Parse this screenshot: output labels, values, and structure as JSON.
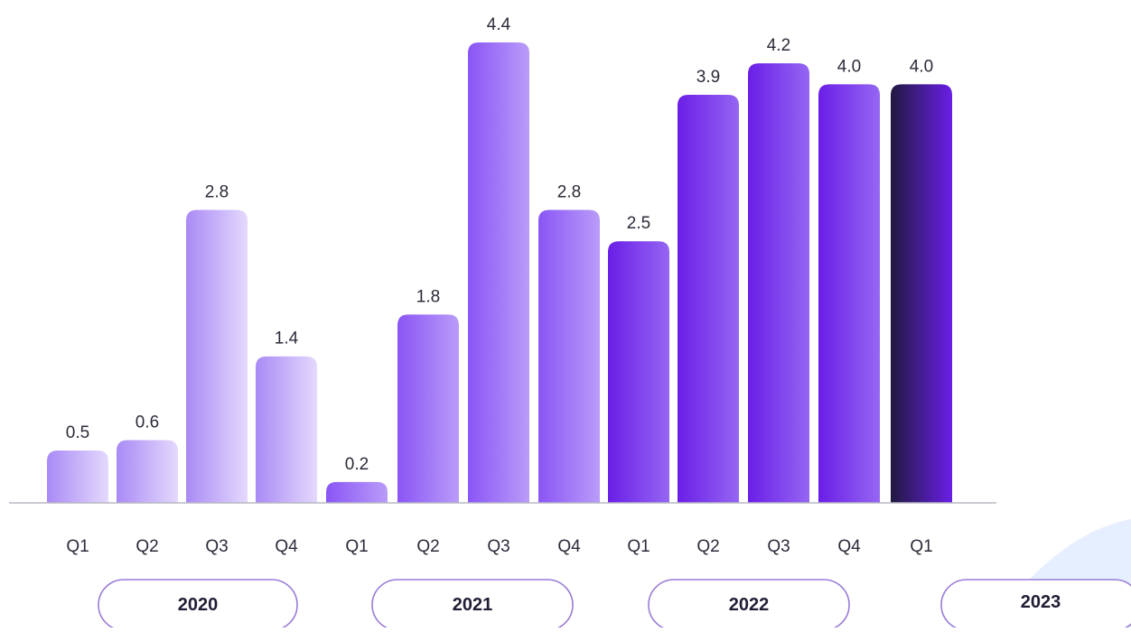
{
  "chart_data": {
    "type": "bar",
    "title": "",
    "xlabel": "",
    "ylabel": "",
    "ylim": [
      0,
      4.4
    ],
    "grid": false,
    "legend": "none",
    "categories": [
      "Q1",
      "Q2",
      "Q3",
      "Q4",
      "Q1",
      "Q2",
      "Q3",
      "Q4",
      "Q1",
      "Q2",
      "Q3",
      "Q4",
      "Q1"
    ],
    "values": [
      0.5,
      0.6,
      2.8,
      1.4,
      0.2,
      1.8,
      4.4,
      2.8,
      2.5,
      3.9,
      4.2,
      4.0,
      4.0
    ],
    "value_labels": [
      "0.5",
      "0.6",
      "2.8",
      "1.4",
      "0.2",
      "1.8",
      "4.4",
      "2.8",
      "2.5",
      "3.9",
      "4.2",
      "4.0",
      "4.0"
    ],
    "groups": [
      {
        "label": "2020",
        "bars": [
          0,
          1,
          2,
          3
        ]
      },
      {
        "label": "2021",
        "bars": [
          4,
          5,
          6,
          7
        ]
      },
      {
        "label": "2022",
        "bars": [
          8,
          9,
          10,
          11
        ]
      },
      {
        "label": "2023",
        "bars": [
          12
        ]
      }
    ],
    "colors": {
      "y2020": [
        "#a98af5",
        "#e4d9fd"
      ],
      "y2021": [
        "#8a55f5",
        "#b99cf9"
      ],
      "y2022": [
        "#6a1ee6",
        "#9566f3"
      ],
      "y2023": [
        "#201a40",
        "#6a1ee6"
      ],
      "baseline": "#b7b7c2",
      "pill_border": "#9a7bd6",
      "decor": "#e6efff"
    }
  }
}
